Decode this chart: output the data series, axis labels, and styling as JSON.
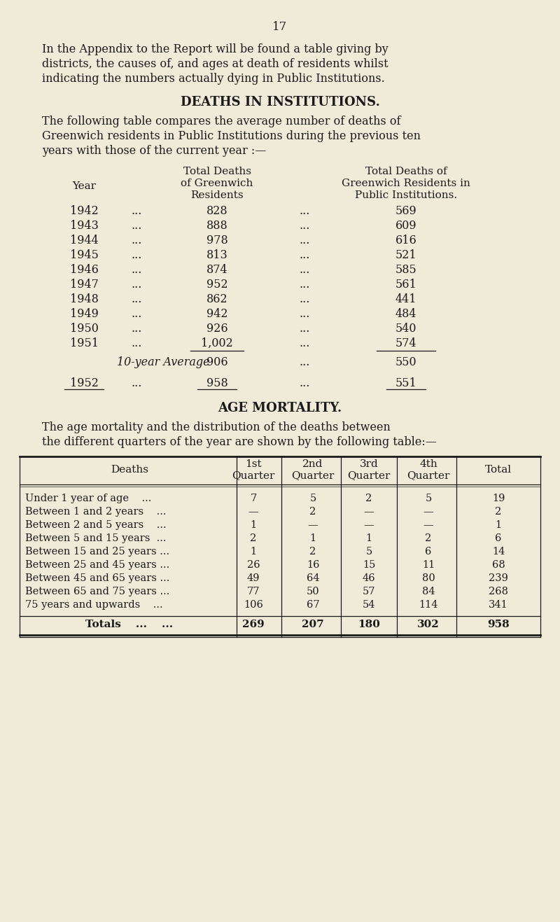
{
  "page_number": "17",
  "bg_color": "#f0ead8",
  "text_color": "#1a1a1a",
  "intro_lines": [
    "In the Appendix to the Report will be found a table giving by",
    "districts, the causes of, and ages at death of residents whilst",
    "indicating the numbers actually dying in Public Institutions."
  ],
  "section1_title": "DEATHS IN INSTITUTIONS.",
  "section1_intro_lines": [
    "The following table compares the average number of deaths of",
    "Greenwich residents in Public Institutions during the previous ten",
    "years with those of the current year :—"
  ],
  "table1_col1_header": "Year",
  "table1_col2_header_lines": [
    "Total Deaths",
    "of Greenwich",
    "Residents"
  ],
  "table1_col3_header_lines": [
    "Total Deaths of",
    "Greenwich Residents in",
    "Public Institutions."
  ],
  "table1_rows": [
    [
      "1942",
      "...",
      "828",
      "...",
      "569"
    ],
    [
      "1943",
      "...",
      "888",
      "...",
      "609"
    ],
    [
      "1944",
      "...",
      "978",
      "...",
      "616"
    ],
    [
      "1945",
      "...",
      "813",
      "...",
      "521"
    ],
    [
      "1946",
      "...",
      "874",
      "...",
      "585"
    ],
    [
      "1947",
      "...",
      "952",
      "...",
      "561"
    ],
    [
      "1948",
      "...",
      "862",
      "...",
      "441"
    ],
    [
      "1949",
      "...",
      "942",
      "...",
      "484"
    ],
    [
      "1950",
      "...",
      "926",
      "...",
      "540"
    ],
    [
      "1951",
      "...",
      "1,002",
      "...",
      "574"
    ]
  ],
  "table1_average_row": [
    "10-year Average",
    "906",
    "...",
    "550"
  ],
  "table1_last_row": [
    "1952",
    "...",
    "958",
    "...",
    "551"
  ],
  "section2_title": "AGE MORTALITY.",
  "section2_intro_lines": [
    "The age mortality and the distribution of the deaths between",
    "the different quarters of the year are shown by the following table:—"
  ],
  "table2_col_headers": [
    "Deaths",
    "1st\nQuarter",
    "2nd\nQuarter",
    "3rd\nQuarter",
    "4th\nQuarter",
    "Total"
  ],
  "table2_rows": [
    [
      "Under 1 year of age    ...",
      "7",
      "5",
      "2",
      "5",
      "19"
    ],
    [
      "Between 1 and 2 years    ...",
      "—",
      "2",
      "—",
      "—",
      "2"
    ],
    [
      "Between 2 and 5 years    ...",
      "1",
      "—",
      "—",
      "—",
      "1"
    ],
    [
      "Between 5 and 15 years  ...",
      "2",
      "1",
      "1",
      "2",
      "6"
    ],
    [
      "Between 15 and 25 years ...",
      "1",
      "2",
      "5",
      "6",
      "14"
    ],
    [
      "Between 25 and 45 years ...",
      "26",
      "16",
      "15",
      "11",
      "68"
    ],
    [
      "Between 45 and 65 years ...",
      "49",
      "64",
      "46",
      "80",
      "239"
    ],
    [
      "Between 65 and 75 years ...",
      "77",
      "50",
      "57",
      "84",
      "268"
    ],
    [
      "75 years and upwards    ...",
      "106",
      "67",
      "54",
      "114",
      "341"
    ]
  ],
  "table2_totals": [
    "Totals    ...    ...",
    "269",
    "207",
    "180",
    "302",
    "958"
  ]
}
